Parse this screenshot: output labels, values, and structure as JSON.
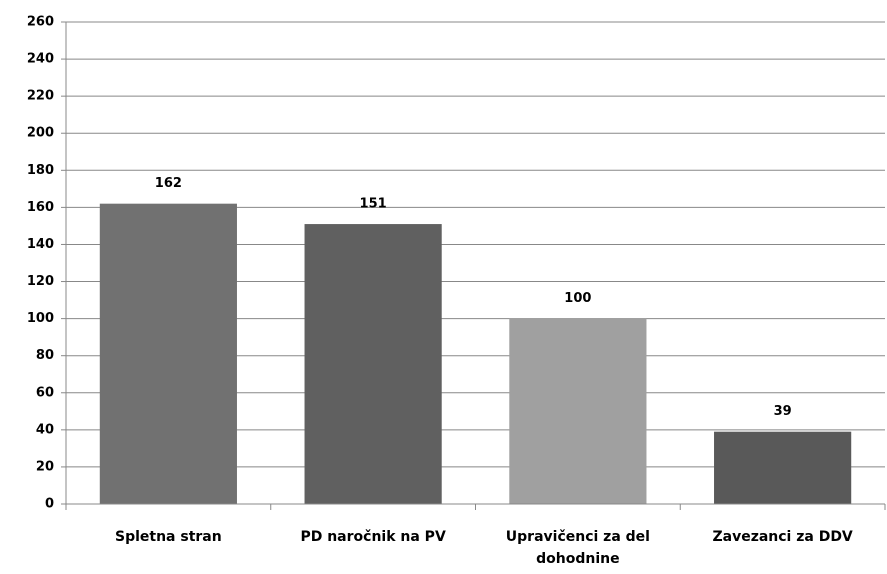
{
  "chart_data": {
    "type": "bar",
    "categories": [
      "Spletna stran",
      "PD naročnik na PV",
      "Upravičenci za del dohodnine",
      "Zavezanci za DDV"
    ],
    "values": [
      162,
      151,
      100,
      39
    ],
    "colors": [
      "#717171",
      "#606060",
      "#a0a0a0",
      "#595959"
    ],
    "ylim": [
      0,
      260
    ],
    "yticks": [
      0,
      20,
      40,
      60,
      80,
      100,
      120,
      140,
      160,
      180,
      200,
      220,
      240,
      260
    ],
    "grid": true
  }
}
